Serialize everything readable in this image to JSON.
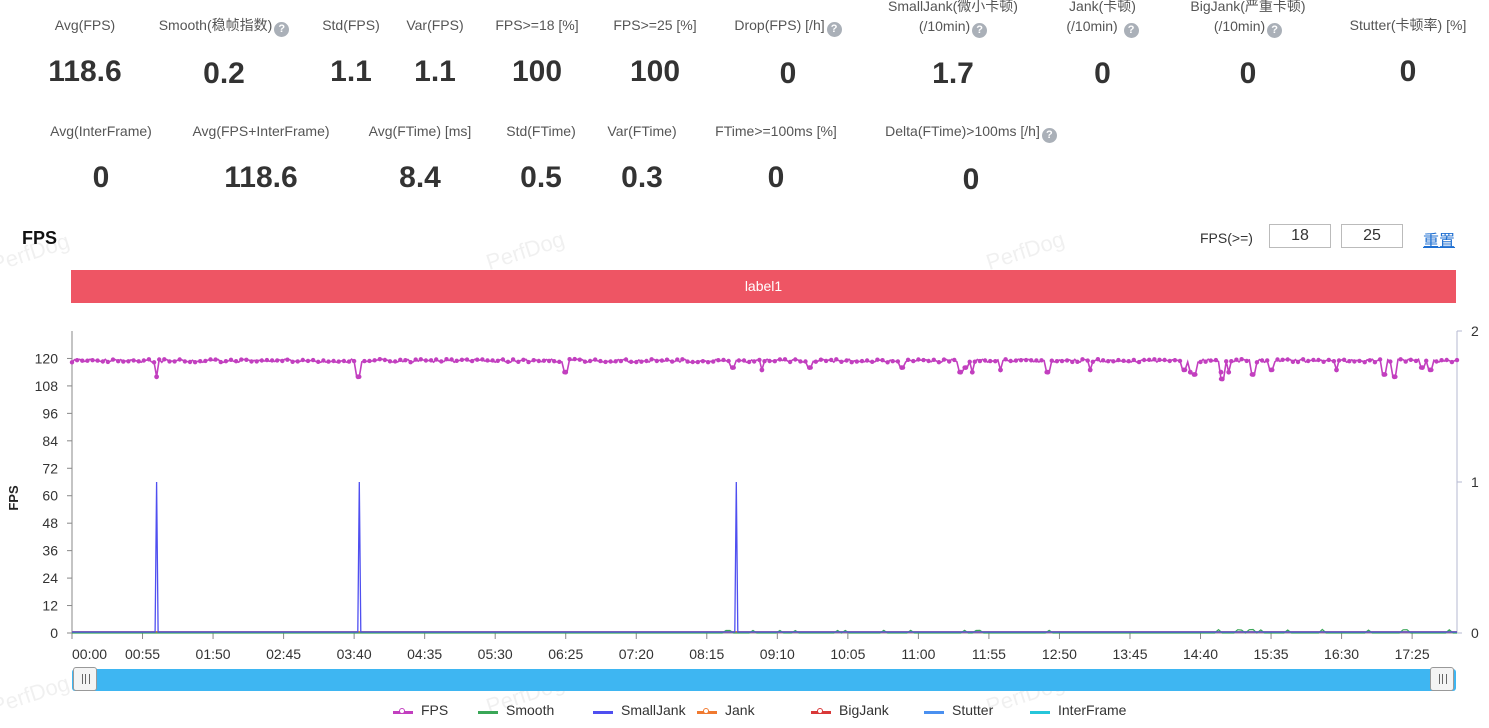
{
  "metrics_row1": [
    {
      "label": "Avg(FPS)",
      "value": "118.6",
      "help": false,
      "label2": ""
    },
    {
      "label": "Smooth(稳帧指数)",
      "value": "0.2",
      "help": true,
      "label2": ""
    },
    {
      "label": "Std(FPS)",
      "value": "1.1",
      "help": false,
      "label2": ""
    },
    {
      "label": "Var(FPS)",
      "value": "1.1",
      "help": false,
      "label2": ""
    },
    {
      "label": "FPS>=18 [%]",
      "value": "100",
      "help": false,
      "label2": ""
    },
    {
      "label": "FPS>=25 [%]",
      "value": "100",
      "help": false,
      "label2": ""
    },
    {
      "label": "Drop(FPS) [/h]",
      "value": "0",
      "help": true,
      "label2": ""
    },
    {
      "label": "SmallJank(微小卡顿)",
      "value": "1.7",
      "help": true,
      "label2": "(/10min)"
    },
    {
      "label": "Jank(卡顿)",
      "value": "0",
      "help": true,
      "label2": "(/10min)"
    },
    {
      "label": "BigJank(严重卡顿)",
      "value": "0",
      "help": true,
      "label2": "(/10min)"
    },
    {
      "label": "Stutter(卡顿率) [%]",
      "value": "0",
      "help": false,
      "label2": ""
    }
  ],
  "metrics_row2": [
    {
      "label": "Avg(InterFrame)",
      "value": "0",
      "help": false
    },
    {
      "label": "Avg(FPS+InterFrame)",
      "value": "118.6",
      "help": false
    },
    {
      "label": "Avg(FTime) [ms]",
      "value": "8.4",
      "help": false
    },
    {
      "label": "Std(FTime)",
      "value": "0.5",
      "help": false
    },
    {
      "label": "Var(FTime)",
      "value": "0.3",
      "help": false
    },
    {
      "label": "FTime>=100ms [%]",
      "value": "0",
      "help": false
    },
    {
      "label": "Delta(FTime)>100ms [/h]",
      "value": "0",
      "help": true
    }
  ],
  "help_glyph": "?",
  "section_title": "FPS",
  "thresholds": {
    "label": "FPS(>=)",
    "value1": "18",
    "value2": "25",
    "reset_label": "重置"
  },
  "label_bar": "label1",
  "watermark": "PerfDog",
  "chart_data": {
    "type": "line",
    "ylabel": "FPS",
    "y_left": {
      "min": 0,
      "max": 132,
      "ticks": [
        0,
        12,
        24,
        36,
        48,
        60,
        72,
        84,
        96,
        108,
        120
      ]
    },
    "y_right": {
      "min": 0,
      "max": 2,
      "ticks": [
        0,
        1,
        2
      ]
    },
    "x_ticks": [
      "00:00",
      "00:55",
      "01:50",
      "02:45",
      "03:40",
      "04:35",
      "05:30",
      "06:25",
      "07:20",
      "08:15",
      "09:10",
      "10:05",
      "11:00",
      "11:55",
      "12:50",
      "13:45",
      "14:40",
      "15:35",
      "16:30",
      "17:25"
    ],
    "x_range_seconds": [
      0,
      1080
    ],
    "series": [
      {
        "name": "FPS",
        "color": "#c23fbf",
        "axis": "left",
        "baseline": 119,
        "dips": [
          [
            66,
            112
          ],
          [
            223,
            112
          ],
          [
            385,
            114
          ],
          [
            515,
            116
          ],
          [
            538,
            115
          ],
          [
            575,
            116
          ],
          [
            647,
            116
          ],
          [
            693,
            114
          ],
          [
            697,
            116
          ],
          [
            702,
            114
          ],
          [
            724,
            115
          ],
          [
            761,
            114
          ],
          [
            794,
            115
          ],
          [
            867,
            115
          ],
          [
            872,
            114
          ],
          [
            875,
            113
          ],
          [
            896,
            114
          ],
          [
            897,
            111
          ],
          [
            902,
            114
          ],
          [
            921,
            113
          ],
          [
            935,
            115
          ],
          [
            986,
            115
          ],
          [
            1023,
            113
          ],
          [
            1031,
            112
          ],
          [
            1053,
            116
          ],
          [
            1059,
            115
          ]
        ]
      },
      {
        "name": "Smooth",
        "color": "#3aa757",
        "axis": "left",
        "values_desc": "near zero"
      },
      {
        "name": "SmallJank",
        "color": "#4f4ff0",
        "axis": "right",
        "spikes": [
          66,
          224,
          518
        ],
        "spike_value": 1
      },
      {
        "name": "Jank",
        "color": "#f07a30",
        "axis": "right",
        "values_desc": "zero"
      },
      {
        "name": "BigJank",
        "color": "#d93838",
        "axis": "right",
        "values_desc": "zero"
      },
      {
        "name": "Stutter",
        "color": "#4a90f0",
        "axis": "left",
        "values_desc": "zero"
      },
      {
        "name": "InterFrame",
        "color": "#26c6da",
        "axis": "left",
        "values_desc": "zero"
      }
    ]
  }
}
